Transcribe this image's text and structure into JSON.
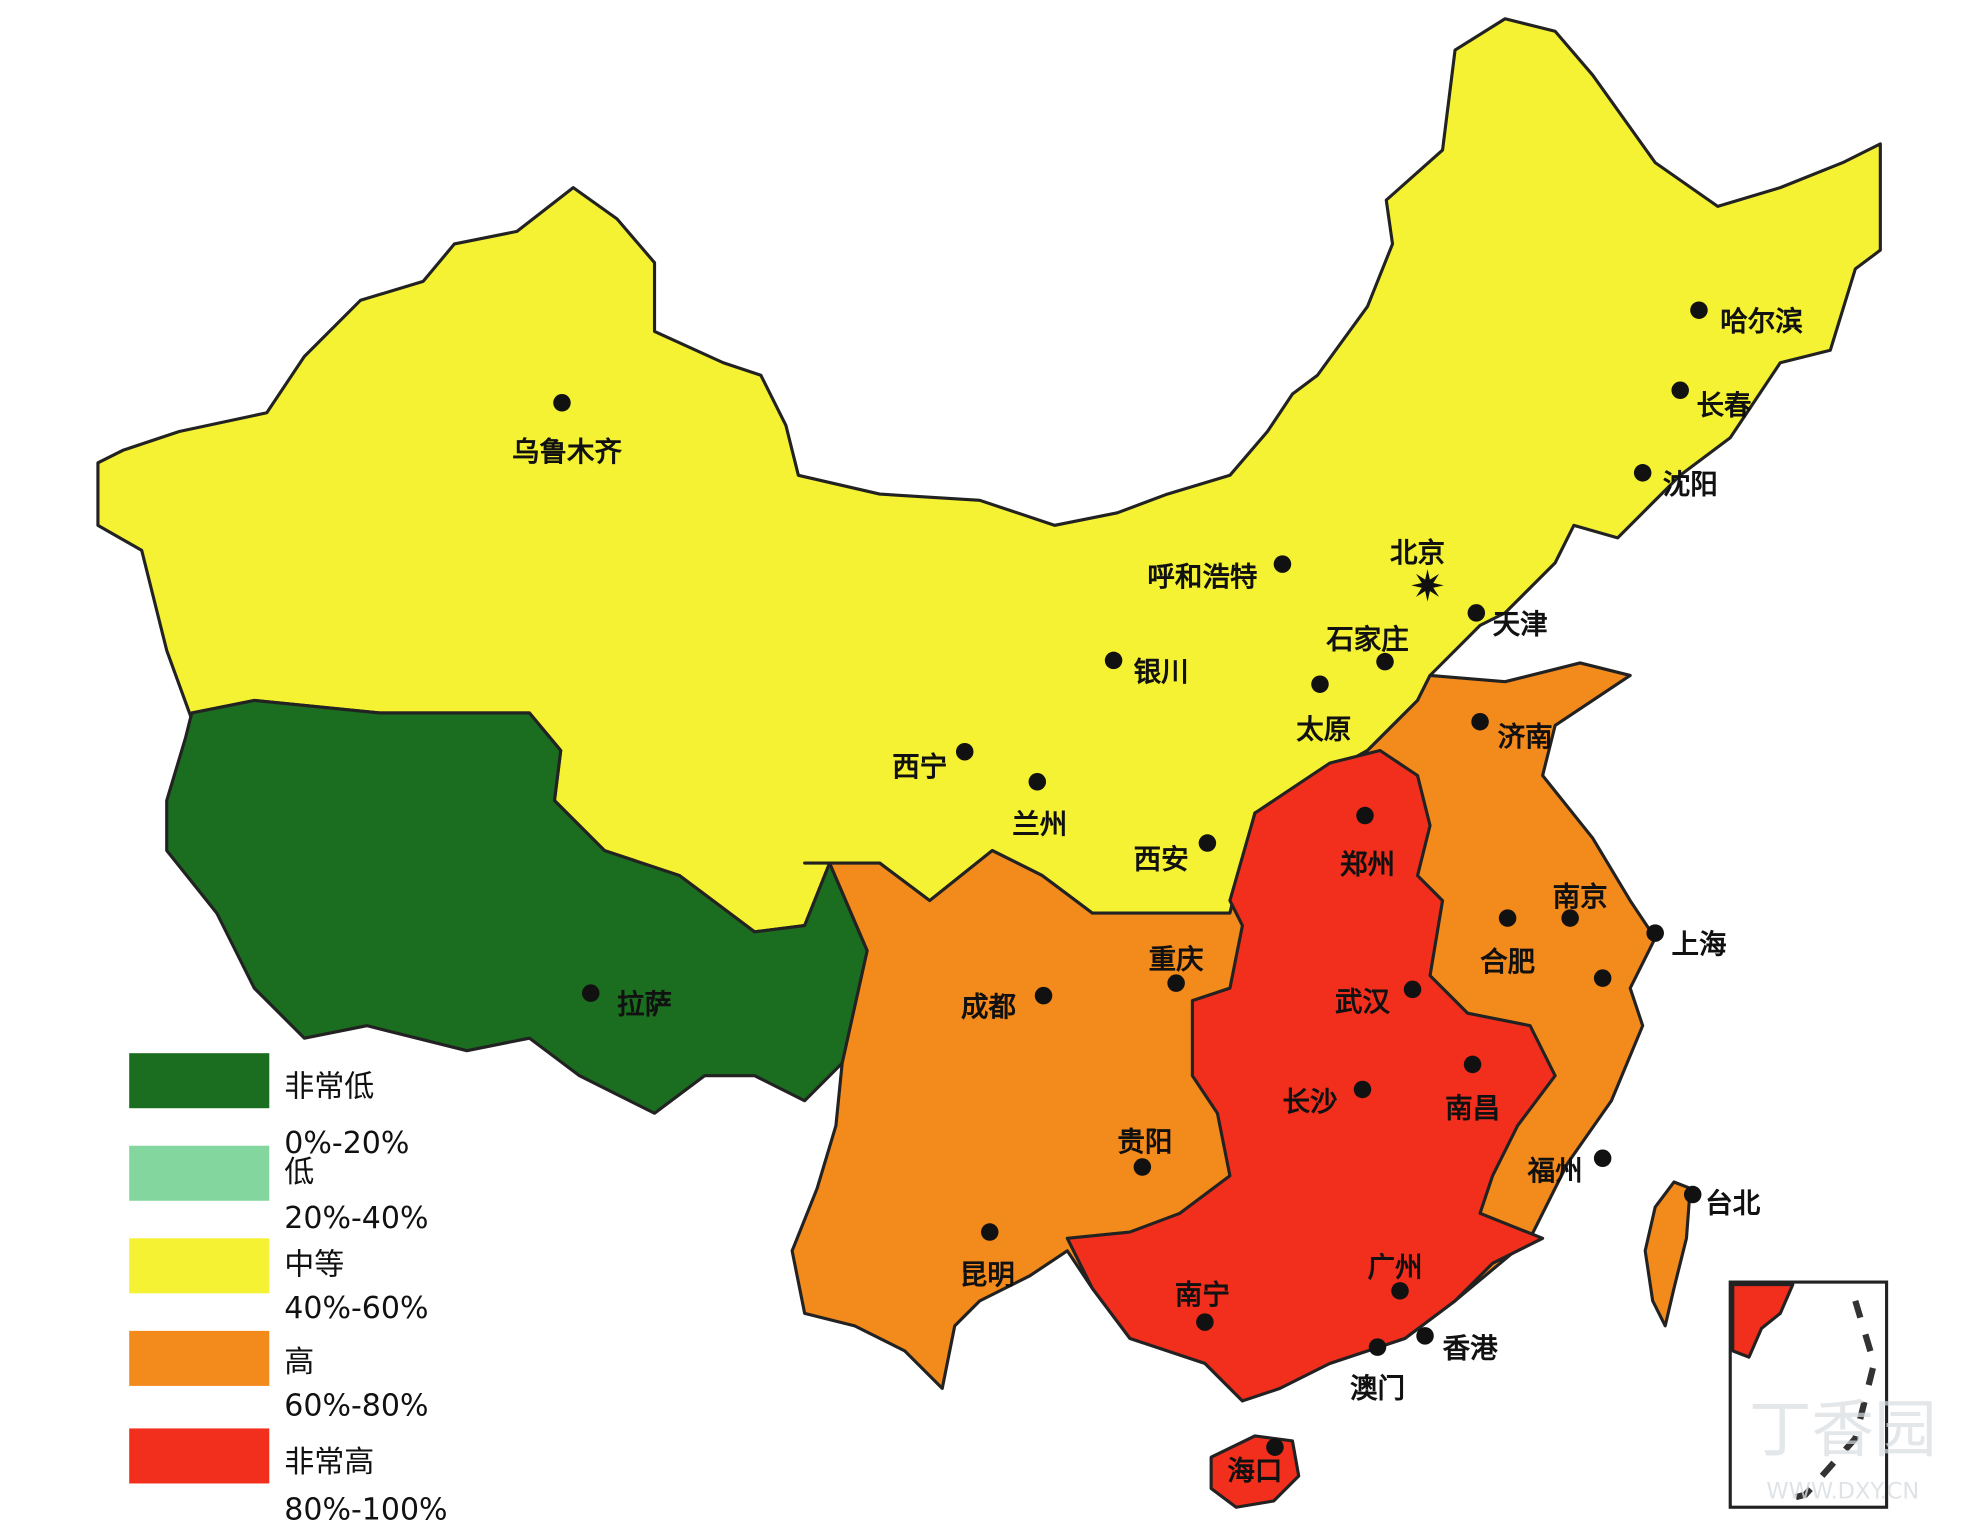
{
  "legend": [
    {
      "label": "非常低",
      "range": "0%-20%",
      "color": "#1b6d1f"
    },
    {
      "label": "低",
      "range": "20%-40%",
      "color": "#82d69e"
    },
    {
      "label": "中等",
      "range": "40%-60%",
      "color": "#f4f232"
    },
    {
      "label": "高",
      "range": "60%-80%",
      "color": "#f38a1c"
    },
    {
      "label": "非常高",
      "range": "80%-100%",
      "color": "#f22e1c"
    }
  ],
  "cities": [
    "乌鲁木齐",
    "哈尔滨",
    "长春",
    "沈阳",
    "呼和浩特",
    "北京",
    "天津",
    "石家庄",
    "银川",
    "太原",
    "济南",
    "西宁",
    "兰州",
    "西安",
    "郑州",
    "南京",
    "合肥",
    "上海",
    "拉萨",
    "成都",
    "重庆",
    "武汉",
    "长沙",
    "南昌",
    "福州",
    "贵阳",
    "台北",
    "昆明",
    "广州",
    "南宁",
    "澳门",
    "香港",
    "海口"
  ],
  "watermark": {
    "name": "丁香园",
    "url": "WWW.DXY.CN"
  }
}
